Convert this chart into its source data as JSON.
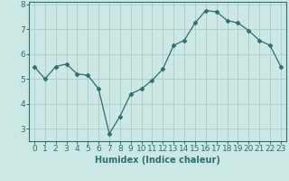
{
  "x": [
    0,
    1,
    2,
    3,
    4,
    5,
    6,
    7,
    8,
    9,
    10,
    11,
    12,
    13,
    14,
    15,
    16,
    17,
    18,
    19,
    20,
    21,
    22,
    23
  ],
  "y": [
    5.5,
    5.0,
    5.5,
    5.6,
    5.2,
    5.15,
    4.6,
    2.8,
    3.5,
    4.4,
    4.6,
    4.95,
    5.4,
    6.35,
    6.55,
    7.25,
    7.75,
    7.7,
    7.35,
    7.25,
    6.95,
    6.55,
    6.35,
    5.5
  ],
  "xlabel": "Humidex (Indice chaleur)",
  "ylim": [
    2.5,
    8.1
  ],
  "xlim": [
    -0.5,
    23.5
  ],
  "yticks": [
    3,
    4,
    5,
    6,
    7,
    8
  ],
  "xticks": [
    0,
    1,
    2,
    3,
    4,
    5,
    6,
    7,
    8,
    9,
    10,
    11,
    12,
    13,
    14,
    15,
    16,
    17,
    18,
    19,
    20,
    21,
    22,
    23
  ],
  "line_color": "#2d6e6e",
  "marker": "D",
  "marker_size": 2.5,
  "bg_color": "#cce8e4",
  "grid_color": "#b0d0cc",
  "axis_color": "#2d6e6e",
  "tick_color": "#2d6e6e",
  "xlabel_fontsize": 7,
  "tick_fontsize": 6.5
}
